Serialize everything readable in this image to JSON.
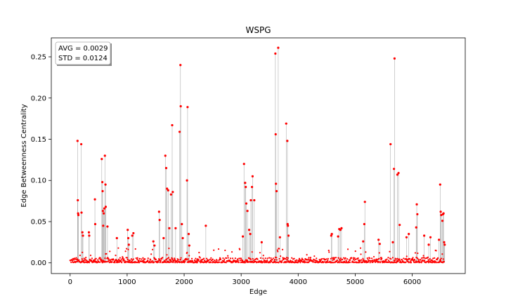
{
  "chart_data": {
    "type": "scatter",
    "title": "WSPG",
    "xlabel": "Edge",
    "ylabel": "Edge Betweenness Centrality",
    "xlim": [
      -330,
      6930
    ],
    "ylim": [
      -0.013,
      0.273
    ],
    "xticks": [
      0,
      1000,
      2000,
      3000,
      4000,
      5000,
      6000
    ],
    "xtick_labels": [
      "0",
      "1000",
      "2000",
      "3000",
      "4000",
      "5000",
      "6000"
    ],
    "yticks": [
      0.0,
      0.05,
      0.1,
      0.15,
      0.2,
      0.25
    ],
    "ytick_labels": [
      "0.00",
      "0.05",
      "0.10",
      "0.15",
      "0.20",
      "0.25"
    ],
    "grid": false,
    "marker_color": "#ff0000",
    "stem_color": "#b0b0b0",
    "stats": {
      "avg_label": "AVG = 0.0029",
      "std_label": "STD = 0.0124",
      "placement": "top-left"
    },
    "series": [
      {
        "points": [
          [
            130,
            0.148
          ],
          [
            135,
            0.076
          ],
          [
            140,
            0.06
          ],
          [
            145,
            0.058
          ],
          [
            195,
            0.144
          ],
          [
            200,
            0.061
          ],
          [
            215,
            0.037
          ],
          [
            225,
            0.033
          ],
          [
            330,
            0.037
          ],
          [
            335,
            0.033
          ],
          [
            435,
            0.077
          ],
          [
            440,
            0.047
          ],
          [
            555,
            0.126
          ],
          [
            565,
            0.098
          ],
          [
            570,
            0.087
          ],
          [
            575,
            0.063
          ],
          [
            580,
            0.045
          ],
          [
            590,
            0.06
          ],
          [
            600,
            0.066
          ],
          [
            610,
            0.13
          ],
          [
            620,
            0.095
          ],
          [
            625,
            0.068
          ],
          [
            655,
            0.044
          ],
          [
            820,
            0.03
          ],
          [
            1010,
            0.04
          ],
          [
            1020,
            0.03
          ],
          [
            1030,
            0.022
          ],
          [
            1090,
            0.033
          ],
          [
            1110,
            0.036
          ],
          [
            1460,
            0.026
          ],
          [
            1480,
            0.021
          ],
          [
            1560,
            0.062
          ],
          [
            1570,
            0.052
          ],
          [
            1640,
            0.03
          ],
          [
            1670,
            0.13
          ],
          [
            1685,
            0.115
          ],
          [
            1700,
            0.09
          ],
          [
            1720,
            0.088
          ],
          [
            1740,
            0.042
          ],
          [
            1770,
            0.083
          ],
          [
            1790,
            0.167
          ],
          [
            1800,
            0.086
          ],
          [
            1850,
            0.042
          ],
          [
            1920,
            0.159
          ],
          [
            1935,
            0.24
          ],
          [
            1940,
            0.19
          ],
          [
            1960,
            0.047
          ],
          [
            1975,
            0.03
          ],
          [
            2050,
            0.1
          ],
          [
            2060,
            0.189
          ],
          [
            2080,
            0.035
          ],
          [
            2090,
            0.021
          ],
          [
            2380,
            0.045
          ],
          [
            3030,
            0.032
          ],
          [
            3050,
            0.12
          ],
          [
            3070,
            0.097
          ],
          [
            3080,
            0.092
          ],
          [
            3090,
            0.072
          ],
          [
            3110,
            0.063
          ],
          [
            3140,
            0.04
          ],
          [
            3160,
            0.035
          ],
          [
            3170,
            0.076
          ],
          [
            3190,
            0.092
          ],
          [
            3200,
            0.105
          ],
          [
            3230,
            0.076
          ],
          [
            3360,
            0.025
          ],
          [
            3600,
            0.254
          ],
          [
            3605,
            0.156
          ],
          [
            3610,
            0.096
          ],
          [
            3620,
            0.087
          ],
          [
            3650,
            0.261
          ],
          [
            3680,
            0.031
          ],
          [
            3790,
            0.169
          ],
          [
            3810,
            0.148
          ],
          [
            3815,
            0.047
          ],
          [
            3820,
            0.045
          ],
          [
            3830,
            0.033
          ],
          [
            4580,
            0.033
          ],
          [
            4590,
            0.035
          ],
          [
            4700,
            0.032
          ],
          [
            4720,
            0.041
          ],
          [
            4740,
            0.04
          ],
          [
            4760,
            0.042
          ],
          [
            5140,
            0.026
          ],
          [
            5160,
            0.047
          ],
          [
            5170,
            0.074
          ],
          [
            5410,
            0.028
          ],
          [
            5430,
            0.023
          ],
          [
            5620,
            0.144
          ],
          [
            5660,
            0.025
          ],
          [
            5680,
            0.114
          ],
          [
            5690,
            0.248
          ],
          [
            5740,
            0.107
          ],
          [
            5760,
            0.109
          ],
          [
            5780,
            0.046
          ],
          [
            5900,
            0.031
          ],
          [
            5940,
            0.035
          ],
          [
            6070,
            0.043
          ],
          [
            6080,
            0.071
          ],
          [
            6090,
            0.059
          ],
          [
            6210,
            0.033
          ],
          [
            6290,
            0.022
          ],
          [
            6320,
            0.031
          ],
          [
            6470,
            0.028
          ],
          [
            6490,
            0.095
          ],
          [
            6500,
            0.062
          ],
          [
            6510,
            0.058
          ],
          [
            6530,
            0.051
          ],
          [
            6540,
            0.059
          ],
          [
            6550,
            0.06
          ],
          [
            6560,
            0.025
          ],
          [
            6570,
            0.022
          ]
        ]
      }
    ]
  }
}
